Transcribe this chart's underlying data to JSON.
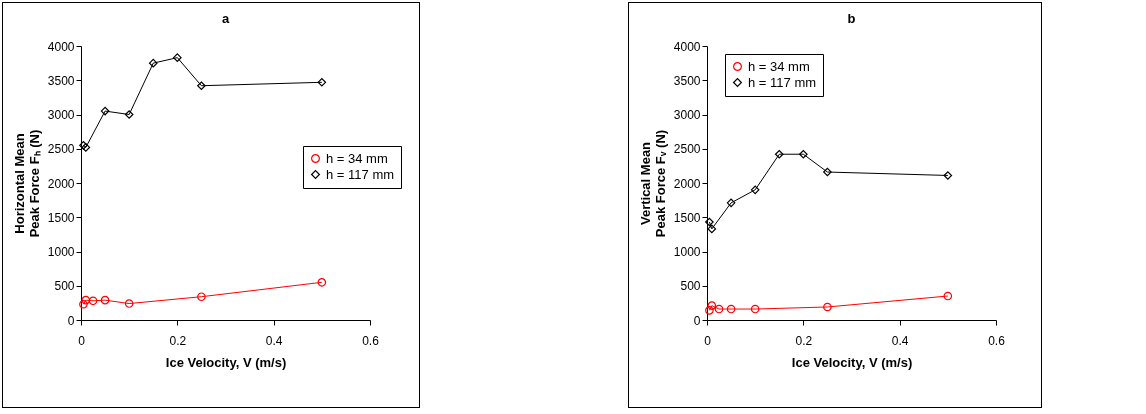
{
  "chart_data": [
    {
      "type": "line",
      "title": "a",
      "xlabel": "Ice Velocity, V (m/s)",
      "ylabel": "Horizontal Mean Peak Force Fₕ (N)",
      "xlim": [
        0,
        0.6
      ],
      "xticks": [
        0,
        0.2,
        0.4,
        0.6
      ],
      "ylim": [
        0,
        4000
      ],
      "yticks": [
        0,
        500,
        1000,
        1500,
        2000,
        2500,
        3000,
        3500,
        4000
      ],
      "grid": false,
      "legend": "right",
      "series": [
        {
          "name": "h = 34 mm",
          "color": "#ff0000",
          "marker": "circle",
          "x": [
            0.005,
            0.01,
            0.025,
            0.05,
            0.1,
            0.25,
            0.5
          ],
          "values": [
            230,
            290,
            280,
            290,
            240,
            340,
            550
          ]
        },
        {
          "name": "h = 117 mm",
          "color": "#000000",
          "marker": "diamond",
          "x": [
            0.005,
            0.01,
            0.05,
            0.1,
            0.15,
            0.2,
            0.25,
            0.5
          ],
          "values": [
            2550,
            2520,
            3050,
            3000,
            3750,
            3830,
            3420,
            3470
          ]
        }
      ]
    },
    {
      "type": "line",
      "title": "b",
      "xlabel": "Ice Velocity, V (m/s)",
      "ylabel": "Vertical Mean Peak Force Fᵥ (N)",
      "xlim": [
        0,
        0.6
      ],
      "xticks": [
        0,
        0.2,
        0.4,
        0.6
      ],
      "ylim": [
        0,
        4000
      ],
      "yticks": [
        0,
        500,
        1000,
        1500,
        2000,
        2500,
        3000,
        3500,
        4000
      ],
      "grid": false,
      "legend": "top left",
      "series": [
        {
          "name": "h = 34 mm",
          "color": "#ff0000",
          "marker": "circle",
          "x": [
            0.005,
            0.01,
            0.025,
            0.05,
            0.1,
            0.25,
            0.5
          ],
          "values": [
            140,
            210,
            160,
            160,
            160,
            190,
            350
          ]
        },
        {
          "name": "h = 117 mm",
          "color": "#000000",
          "marker": "diamond",
          "x": [
            0.005,
            0.01,
            0.05,
            0.1,
            0.15,
            0.2,
            0.25,
            0.5
          ],
          "values": [
            1430,
            1330,
            1710,
            1900,
            2420,
            2420,
            2160,
            2110
          ]
        }
      ]
    }
  ]
}
